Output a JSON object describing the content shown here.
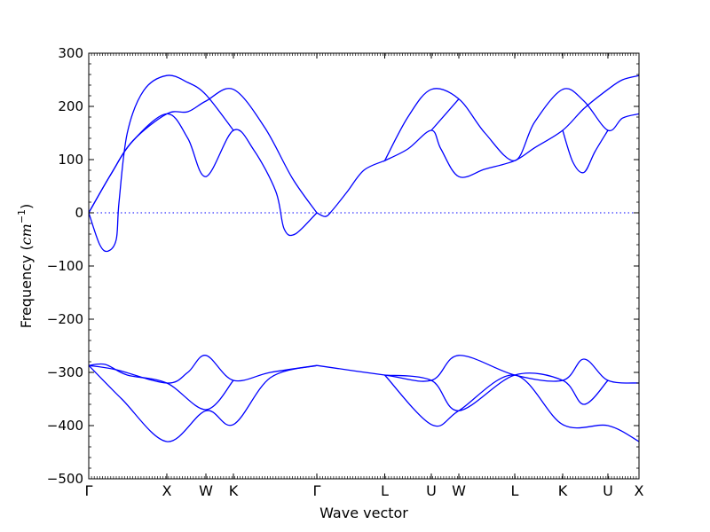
{
  "chart_data": {
    "type": "line",
    "title": "",
    "xlabel": "Wave vector",
    "ylabel_prefix": "Frequency (",
    "ylabel_unit": "cm",
    "ylabel_exp": "−1",
    "ylabel_suffix": ")",
    "ylim": [
      -500,
      300
    ],
    "yticks": [
      300,
      200,
      100,
      0,
      -100,
      -200,
      -300,
      -400,
      -500
    ],
    "xlim": [
      0,
      1
    ],
    "xticks": [
      {
        "label": "Γ",
        "x": 0.0
      },
      {
        "label": "X",
        "x": 0.1419
      },
      {
        "label": "W",
        "x": 0.2129
      },
      {
        "label": "K",
        "x": 0.2629
      },
      {
        "label": "Γ",
        "x": 0.4145
      },
      {
        "label": "L",
        "x": 0.5379
      },
      {
        "label": "U",
        "x": 0.6226
      },
      {
        "label": "W",
        "x": 0.6726
      },
      {
        "label": "L",
        "x": 0.7742
      },
      {
        "label": "K",
        "x": 0.8613
      },
      {
        "label": "U",
        "x": 0.9435
      },
      {
        "label": "X",
        "x": 1.0
      }
    ],
    "zero_line": true,
    "line_color": "#0000ff",
    "zero_line_color": "#0000ff",
    "series": [
      {
        "values": [
          [
            0.0,
            0
          ],
          [
            0.04,
            72
          ],
          [
            0.08,
            135
          ],
          [
            0.1419,
            186
          ],
          [
            0.18,
            190
          ],
          [
            0.2129,
            210
          ],
          [
            0.2629,
            232
          ],
          [
            0.32,
            160
          ],
          [
            0.37,
            65
          ],
          [
            0.4145,
            0
          ]
        ]
      },
      {
        "values": [
          [
            0.0,
            0
          ],
          [
            0.04,
            72
          ],
          [
            0.08,
            135
          ],
          [
            0.1419,
            186
          ],
          [
            0.18,
            140
          ],
          [
            0.2129,
            68
          ],
          [
            0.2629,
            155
          ],
          [
            0.3,
            118
          ],
          [
            0.34,
            40
          ],
          [
            0.355,
            -30
          ],
          [
            0.375,
            -40
          ],
          [
            0.4145,
            0
          ]
        ]
      },
      {
        "values": [
          [
            0.0,
            0
          ],
          [
            0.02,
            -60
          ],
          [
            0.035,
            -72
          ],
          [
            0.05,
            -50
          ],
          [
            0.055,
            20
          ],
          [
            0.07,
            150
          ],
          [
            0.1,
            230
          ],
          [
            0.1419,
            258
          ],
          [
            0.18,
            245
          ],
          [
            0.2129,
            222
          ],
          [
            0.2629,
            155
          ]
        ]
      },
      {
        "values": [
          [
            0.4145,
            0
          ],
          [
            0.43,
            -7
          ],
          [
            0.443,
            5
          ],
          [
            0.47,
            40
          ],
          [
            0.5,
            80
          ],
          [
            0.5379,
            98
          ],
          [
            0.5379,
            98
          ],
          [
            0.58,
            120
          ],
          [
            0.6226,
            155
          ],
          [
            0.64,
            120
          ],
          [
            0.6726,
            68
          ],
          [
            0.72,
            82
          ],
          [
            0.7742,
            98
          ],
          [
            0.81,
            122
          ],
          [
            0.8613,
            155
          ],
          [
            0.9,
            196
          ],
          [
            0.9435,
            232
          ],
          [
            0.97,
            250
          ],
          [
            1.0,
            258
          ]
        ]
      },
      {
        "values": [
          [
            0.5379,
            98
          ],
          [
            0.58,
            180
          ],
          [
            0.6226,
            232
          ],
          [
            0.6726,
            214
          ],
          [
            0.72,
            150
          ],
          [
            0.7742,
            98
          ],
          [
            0.81,
            170
          ],
          [
            0.8613,
            232
          ],
          [
            0.9,
            210
          ],
          [
            0.9435,
            155
          ],
          [
            0.97,
            178
          ],
          [
            1.0,
            186
          ]
        ]
      },
      {
        "values": [
          [
            0.6226,
            155
          ],
          [
            0.6726,
            214
          ]
        ]
      },
      {
        "values": [
          [
            0.8613,
            155
          ],
          [
            0.88,
            95
          ],
          [
            0.9,
            76
          ],
          [
            0.92,
            115
          ],
          [
            0.9435,
            155
          ]
        ]
      },
      {
        "values": [
          [
            0.0,
            -287
          ],
          [
            0.05,
            -295
          ],
          [
            0.1419,
            -320
          ],
          [
            0.18,
            -300
          ],
          [
            0.2129,
            -268
          ],
          [
            0.2629,
            -315
          ],
          [
            0.33,
            -300
          ],
          [
            0.4145,
            -287
          ]
        ]
      },
      {
        "values": [
          [
            0.0,
            -287
          ],
          [
            0.06,
            -350
          ],
          [
            0.1419,
            -430
          ],
          [
            0.2129,
            -372
          ],
          [
            0.2629,
            -398
          ],
          [
            0.33,
            -310
          ],
          [
            0.4145,
            -287
          ]
        ]
      },
      {
        "values": [
          [
            0.0,
            -287
          ],
          [
            0.03,
            -285
          ],
          [
            0.07,
            -305
          ],
          [
            0.1419,
            -320
          ],
          [
            0.2129,
            -370
          ],
          [
            0.2629,
            -315
          ]
        ]
      },
      {
        "values": [
          [
            0.4145,
            -287
          ],
          [
            0.5379,
            -305
          ],
          [
            0.6226,
            -315
          ],
          [
            0.6726,
            -268
          ],
          [
            0.7742,
            -305
          ],
          [
            0.8613,
            -315
          ],
          [
            0.9,
            -275
          ],
          [
            0.9435,
            -315
          ],
          [
            1.0,
            -320
          ]
        ]
      },
      {
        "values": [
          [
            0.5379,
            -305
          ],
          [
            0.6226,
            -398
          ],
          [
            0.6726,
            -372
          ],
          [
            0.7742,
            -305
          ],
          [
            0.8613,
            -398
          ],
          [
            0.9435,
            -400
          ],
          [
            1.0,
            -430
          ]
        ]
      },
      {
        "values": [
          [
            0.5379,
            -305
          ],
          [
            0.6226,
            -315
          ],
          [
            0.6726,
            -372
          ],
          [
            0.7742,
            -305
          ],
          [
            0.8613,
            -315
          ],
          [
            0.9,
            -360
          ],
          [
            0.9435,
            -315
          ]
        ]
      }
    ]
  }
}
